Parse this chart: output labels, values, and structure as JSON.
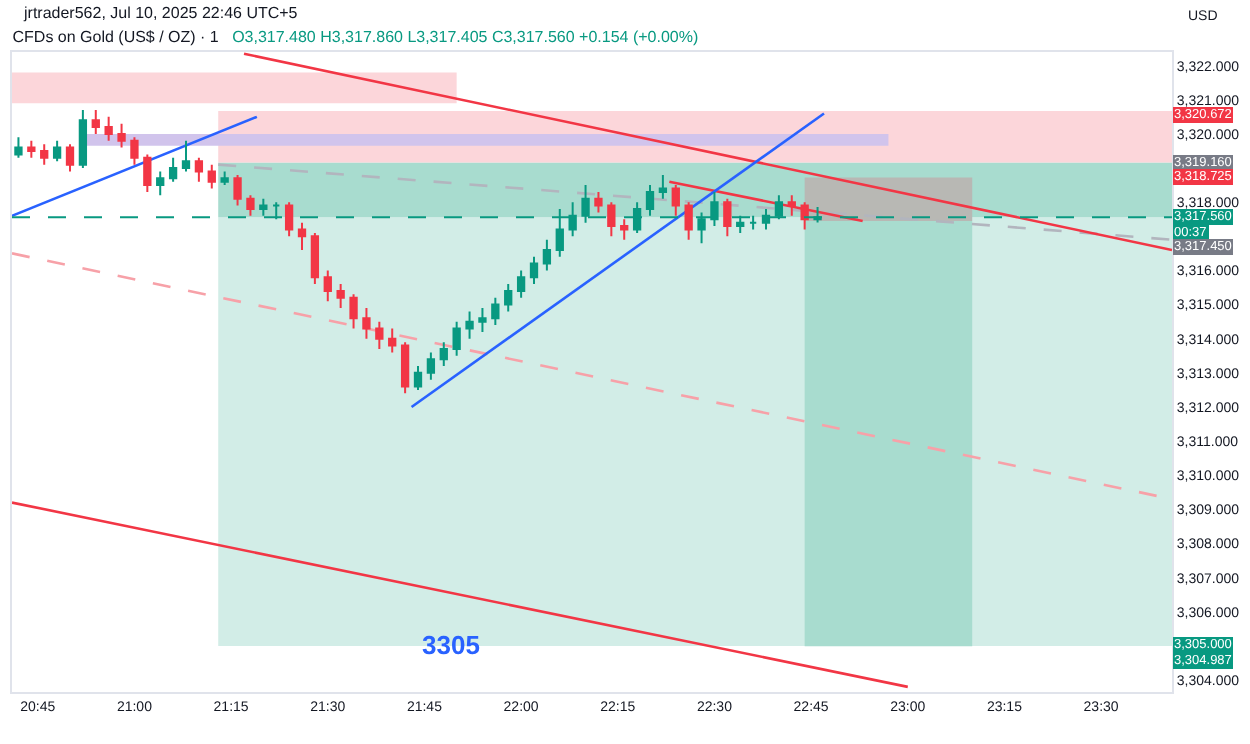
{
  "chart_data": {
    "type": "candlestick",
    "title": "CFDs on Gold (US$ / OZ) · 1",
    "subtitle": "O3,317.480 H3,317.860 L3,317.405 C3,317.560 +0.154 (+0.00%)",
    "ylabel": "USD",
    "x": [
      "2025-07-10T20:42",
      "2025-07-10T20:44",
      "2025-07-10T20:46",
      "2025-07-10T20:48",
      "2025-07-10T20:50",
      "2025-07-10T20:52",
      "2025-07-10T20:54",
      "2025-07-10T20:56",
      "2025-07-10T20:58",
      "2025-07-10T21:00",
      "2025-07-10T21:02",
      "2025-07-10T21:04",
      "2025-07-10T21:06",
      "2025-07-10T21:08",
      "2025-07-10T21:10",
      "2025-07-10T21:12",
      "2025-07-10T21:14",
      "2025-07-10T21:16",
      "2025-07-10T21:18",
      "2025-07-10T21:20",
      "2025-07-10T21:22",
      "2025-07-10T21:24",
      "2025-07-10T21:26",
      "2025-07-10T21:28",
      "2025-07-10T21:30",
      "2025-07-10T21:32",
      "2025-07-10T21:34",
      "2025-07-10T21:36",
      "2025-07-10T21:38",
      "2025-07-10T21:40",
      "2025-07-10T21:42",
      "2025-07-10T21:44",
      "2025-07-10T21:46",
      "2025-07-10T21:48",
      "2025-07-10T21:50",
      "2025-07-10T21:52",
      "2025-07-10T21:54",
      "2025-07-10T21:56",
      "2025-07-10T21:58",
      "2025-07-10T22:00",
      "2025-07-10T22:02",
      "2025-07-10T22:04",
      "2025-07-10T22:06",
      "2025-07-10T22:08",
      "2025-07-10T22:10",
      "2025-07-10T22:12",
      "2025-07-10T22:14",
      "2025-07-10T22:16",
      "2025-07-10T22:18",
      "2025-07-10T22:20",
      "2025-07-10T22:22",
      "2025-07-10T22:24",
      "2025-07-10T22:26",
      "2025-07-10T22:28",
      "2025-07-10T22:30",
      "2025-07-10T22:32",
      "2025-07-10T22:34",
      "2025-07-10T22:36",
      "2025-07-10T22:38",
      "2025-07-10T22:40",
      "2025-07-10T22:42",
      "2025-07-10T22:44",
      "2025-07-10T22:46"
    ],
    "ohlc": [
      [
        3319.4,
        3319.9,
        3319.3,
        3319.6
      ],
      [
        3319.6,
        3319.8,
        3319.3,
        3319.5
      ],
      [
        3319.5,
        3319.7,
        3319.1,
        3319.3
      ],
      [
        3319.3,
        3319.8,
        3319.2,
        3319.6
      ],
      [
        3319.6,
        3319.7,
        3318.9,
        3319.1
      ],
      [
        3319.1,
        3320.7,
        3319.0,
        3320.4
      ],
      [
        3320.4,
        3320.7,
        3320.0,
        3320.2
      ],
      [
        3320.2,
        3320.5,
        3319.8,
        3320.0
      ],
      [
        3320.0,
        3320.3,
        3319.6,
        3319.8
      ],
      [
        3319.8,
        3319.9,
        3319.1,
        3319.3
      ],
      [
        3319.3,
        3319.4,
        3318.3,
        3318.5
      ],
      [
        3318.5,
        3318.9,
        3318.2,
        3318.7
      ],
      [
        3318.7,
        3319.3,
        3318.6,
        3319.0
      ],
      [
        3319.0,
        3319.8,
        3318.9,
        3319.2
      ],
      [
        3319.2,
        3319.3,
        3318.6,
        3318.9
      ],
      [
        3318.9,
        3319.1,
        3318.4,
        3318.6
      ],
      [
        3318.6,
        3318.9,
        3318.5,
        3318.7
      ],
      [
        3318.7,
        3318.8,
        3317.9,
        3318.1
      ],
      [
        3318.1,
        3318.2,
        3317.6,
        3317.8
      ],
      [
        3317.8,
        3318.1,
        3317.6,
        3317.9
      ],
      [
        3317.9,
        3318.0,
        3317.5,
        3317.9
      ],
      [
        3317.9,
        3318.0,
        3317.0,
        3317.2
      ],
      [
        3317.2,
        3317.4,
        3316.6,
        3317.0
      ],
      [
        3317.0,
        3317.1,
        3315.6,
        3315.8
      ],
      [
        3315.8,
        3316.0,
        3315.1,
        3315.4
      ],
      [
        3315.4,
        3315.6,
        3314.9,
        3315.2
      ],
      [
        3315.2,
        3315.3,
        3314.3,
        3314.6
      ],
      [
        3314.6,
        3314.9,
        3314.0,
        3314.3
      ],
      [
        3314.3,
        3314.5,
        3313.7,
        3314.0
      ],
      [
        3314.0,
        3314.3,
        3313.6,
        3313.8
      ],
      [
        3313.8,
        3313.9,
        3312.4,
        3312.6
      ],
      [
        3312.6,
        3313.2,
        3312.5,
        3313.0
      ],
      [
        3313.0,
        3313.6,
        3312.8,
        3313.4
      ],
      [
        3313.4,
        3313.9,
        3313.2,
        3313.7
      ],
      [
        3313.7,
        3314.5,
        3313.5,
        3314.3
      ],
      [
        3314.3,
        3314.8,
        3314.0,
        3314.5
      ],
      [
        3314.5,
        3314.9,
        3314.2,
        3314.6
      ],
      [
        3314.6,
        3315.2,
        3314.4,
        3315.0
      ],
      [
        3315.0,
        3315.6,
        3314.8,
        3315.4
      ],
      [
        3315.4,
        3316.0,
        3315.2,
        3315.8
      ],
      [
        3315.8,
        3316.4,
        3315.6,
        3316.2
      ],
      [
        3316.2,
        3316.9,
        3316.0,
        3316.6
      ],
      [
        3316.6,
        3317.8,
        3316.4,
        3317.2
      ],
      [
        3317.2,
        3318.0,
        3317.0,
        3317.6
      ],
      [
        3317.6,
        3318.5,
        3317.4,
        3318.1
      ],
      [
        3318.1,
        3318.3,
        3317.7,
        3317.9
      ],
      [
        3317.9,
        3318.0,
        3317.0,
        3317.3
      ],
      [
        3317.3,
        3317.5,
        3316.9,
        3317.2
      ],
      [
        3317.2,
        3318.0,
        3317.1,
        3317.8
      ],
      [
        3317.8,
        3318.5,
        3317.6,
        3318.3
      ],
      [
        3318.3,
        3318.8,
        3318.1,
        3318.4
      ],
      [
        3318.4,
        3318.5,
        3317.6,
        3317.9
      ],
      [
        3317.9,
        3318.0,
        3316.9,
        3317.2
      ],
      [
        3317.2,
        3317.7,
        3316.8,
        3317.5
      ],
      [
        3317.5,
        3318.3,
        3317.3,
        3318.0
      ],
      [
        3318.0,
        3318.1,
        3317.0,
        3317.3
      ],
      [
        3317.3,
        3317.6,
        3317.1,
        3317.4
      ],
      [
        3317.4,
        3317.6,
        3317.2,
        3317.4
      ],
      [
        3317.4,
        3317.8,
        3317.2,
        3317.6
      ],
      [
        3317.6,
        3318.2,
        3317.5,
        3318.0
      ],
      [
        3318.0,
        3318.2,
        3317.6,
        3317.9
      ],
      [
        3317.9,
        3318.0,
        3317.2,
        3317.5
      ],
      [
        3317.5,
        3317.86,
        3317.405,
        3317.56
      ]
    ],
    "series": [
      {
        "type": "line",
        "color": "#d2ede7",
        "x": [
          "2025-07-10T21:13",
          "2025-07-10T23:41"
        ],
        "values": [
          null,
          null
        ],
        "lower": [
          3305.0,
          3305.0
        ],
        "upper": [
          3317.56,
          3317.56
        ]
      },
      {
        "type": "line",
        "color": "#a8dccf",
        "x": [
          "2025-07-10T21:13",
          "2025-07-10T23:41"
        ],
        "values": [
          null,
          null
        ],
        "lower": [
          3317.56,
          3317.56
        ],
        "upper": [
          3319.16,
          3319.16
        ]
      },
      {
        "type": "line",
        "color": "#a8dccf",
        "x": [
          "2025-07-10T22:44",
          "2025-07-10T23:10"
        ],
        "values": [
          null,
          null
        ],
        "lower": [
          3304.987,
          3304.987
        ],
        "upper": [
          3317.45,
          3317.45
        ]
      },
      {
        "type": "line",
        "color": "#b8b8b4",
        "x": [
          "2025-07-10T22:44",
          "2025-07-10T23:10"
        ],
        "values": [
          null,
          null
        ],
        "lower": [
          3317.45,
          3317.45
        ],
        "upper": [
          3318.725,
          3318.725
        ]
      },
      {
        "type": "line",
        "color": "#fcd6da",
        "x": [
          "2025-07-10T21:13",
          "2025-07-10T23:41"
        ],
        "values": [
          null,
          null
        ],
        "lower": [
          3319.16,
          3319.16
        ],
        "upper": [
          3320.672,
          3320.672
        ]
      },
      {
        "type": "line",
        "color": "#fcd6da",
        "x": [
          "2025-07-10T20:41",
          "2025-07-10T21:50"
        ],
        "values": [
          null,
          null
        ],
        "lower": [
          3320.9,
          3320.9
        ],
        "upper": [
          3321.8,
          3321.8
        ]
      },
      {
        "type": "line",
        "color": "#d1c4ec",
        "x": [
          "2025-07-10T20:52",
          "2025-07-10T22:57"
        ],
        "values": [
          null,
          null
        ],
        "lower": [
          3319.65,
          3319.65
        ],
        "upper": [
          3320.0,
          3320.0
        ]
      },
      {
        "type": "line",
        "color": "#f7a1a8",
        "line_style": "dashed",
        "x": [
          "2025-07-10T20:41",
          "2025-07-10T23:41"
        ],
        "values": [
          3316.5,
          3309.3
        ]
      },
      {
        "type": "line",
        "color": "#b2b5be",
        "line_style": "dashed",
        "x": [
          "2025-07-10T21:13",
          "2025-07-10T23:41"
        ],
        "values": [
          3319.1,
          3316.9
        ]
      },
      {
        "type": "line",
        "color": "#f23645",
        "line_style": "solid",
        "x": [
          "2025-07-10T21:17",
          "2025-07-10T23:41"
        ],
        "values": [
          3322.35,
          3316.6
        ]
      },
      {
        "type": "line",
        "color": "#f23645",
        "line_style": "solid",
        "x": [
          "2025-07-10T20:41",
          "2025-07-10T23:00"
        ],
        "values": [
          3309.2,
          3303.8
        ]
      },
      {
        "type": "line",
        "color": "#f23645",
        "line_style": "solid",
        "x": [
          "2025-07-10T22:23",
          "2025-07-10T22:53"
        ],
        "values": [
          3318.6,
          3317.45
        ]
      },
      {
        "type": "line",
        "color": "#2962ff",
        "line_style": "solid",
        "x": [
          "2025-07-10T20:41",
          "2025-07-10T21:19"
        ],
        "values": [
          3317.6,
          3320.5
        ]
      },
      {
        "type": "line",
        "color": "#2962ff",
        "line_style": "solid",
        "x": [
          "2025-07-10T21:43",
          "2025-07-10T22:47"
        ],
        "values": [
          3312.0,
          3320.6
        ]
      }
    ],
    "ref_lines": [
      {
        "axis": "y",
        "value": 3317.56,
        "color": "#089981",
        "line_style": "dashed",
        "label": "3,317.560"
      }
    ],
    "xlim": [
      "2025-07-10T20:41",
      "2025-07-10T23:41"
    ],
    "xticks": [
      {
        "value": "2025-07-10T20:45",
        "label": "20:45"
      },
      {
        "value": "2025-07-10T21:00",
        "label": "21:00"
      },
      {
        "value": "2025-07-10T21:15",
        "label": "21:15"
      },
      {
        "value": "2025-07-10T21:30",
        "label": "21:30"
      },
      {
        "value": "2025-07-10T21:45",
        "label": "21:45"
      },
      {
        "value": "2025-07-10T22:00",
        "label": "22:00"
      },
      {
        "value": "2025-07-10T22:15",
        "label": "22:15"
      },
      {
        "value": "2025-07-10T22:30",
        "label": "22:30"
      },
      {
        "value": "2025-07-10T22:45",
        "label": "22:45"
      },
      {
        "value": "2025-07-10T23:00",
        "label": "23:00"
      },
      {
        "value": "2025-07-10T23:15",
        "label": "23:15"
      },
      {
        "value": "2025-07-10T23:30",
        "label": "23:30"
      }
    ],
    "ylim": [
      3303.65,
      3322.4
    ],
    "yticks": [
      {
        "value": 3304,
        "label": "3,304.000"
      },
      {
        "value": 3306,
        "label": "3,306.000"
      },
      {
        "value": 3307,
        "label": "3,307.000"
      },
      {
        "value": 3308,
        "label": "3,308.000"
      },
      {
        "value": 3309,
        "label": "3,309.000"
      },
      {
        "value": 3310,
        "label": "3,310.000"
      },
      {
        "value": 3311,
        "label": "3,311.000"
      },
      {
        "value": 3312,
        "label": "3,312.000"
      },
      {
        "value": 3313,
        "label": "3,313.000"
      },
      {
        "value": 3314,
        "label": "3,314.000"
      },
      {
        "value": 3315,
        "label": "3,315.000"
      },
      {
        "value": 3316,
        "label": "3,316.000"
      },
      {
        "value": 3318,
        "label": "3,318.000"
      },
      {
        "value": 3320,
        "label": "3,320.000"
      },
      {
        "value": 3321,
        "label": "3,321.000"
      },
      {
        "value": 3322,
        "label": "3,322.000"
      }
    ],
    "annotations": [
      "jrtrader562, Jul 10, 2025 22:46 UTC+5",
      "3,320.672",
      "3,319.160",
      "3,318.725",
      "00:37",
      "3,317.450",
      "3,305.000",
      "3,304.987",
      {
        "text": "3305",
        "x": "2025-07-10T21:49",
        "y": 3305.0
      }
    ],
    "grid": false
  }
}
